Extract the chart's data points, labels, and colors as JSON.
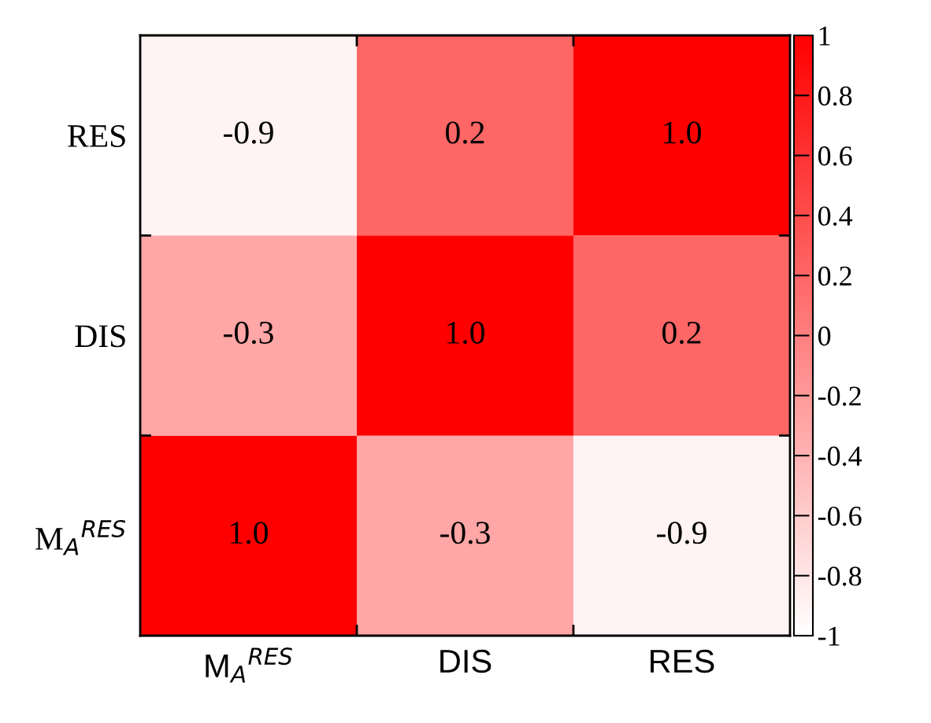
{
  "chart_data": {
    "type": "heatmap",
    "categories": [
      "M$_{A}$$^{RES}$",
      "DIS",
      "RES"
    ],
    "y_categories": [
      "RES",
      "DIS",
      "M$_{A}$$^{RES}$"
    ],
    "cells": [
      [
        -0.9,
        0.2,
        1.0
      ],
      [
        -0.3,
        1.0,
        0.2
      ],
      [
        1.0,
        -0.3,
        -0.9
      ]
    ],
    "cell_labels": [
      [
        "-0.9",
        "0.2",
        "1.0"
      ],
      [
        "-0.3",
        "1.0",
        "0.2"
      ],
      [
        "1.0",
        "-0.3",
        "-0.9"
      ]
    ],
    "colors": [
      "#ffffff",
      "#ff0000"
    ],
    "clim": [
      -1,
      1
    ],
    "cticks": [
      -1,
      -0.8,
      -0.6,
      -0.4,
      -0.2,
      0,
      0.2,
      0.4,
      0.6,
      0.8,
      1
    ]
  }
}
